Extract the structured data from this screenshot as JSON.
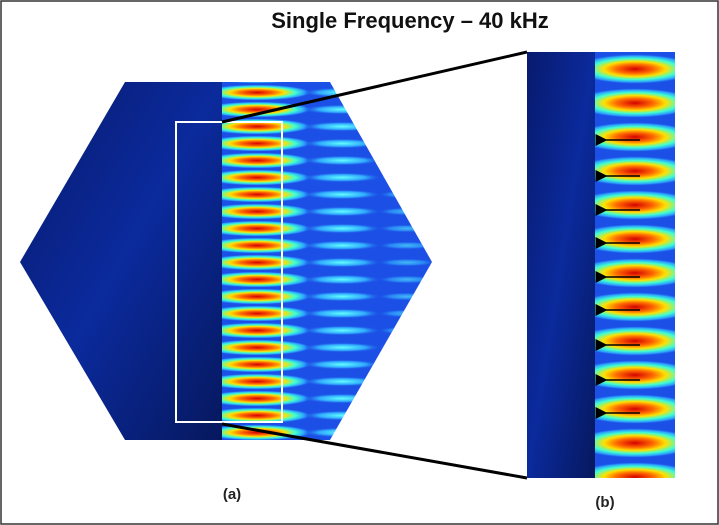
{
  "title": "Single Frequency – 40 kHz",
  "panels": [
    {
      "label": "(a)"
    },
    {
      "label": "(b)"
    }
  ]
}
